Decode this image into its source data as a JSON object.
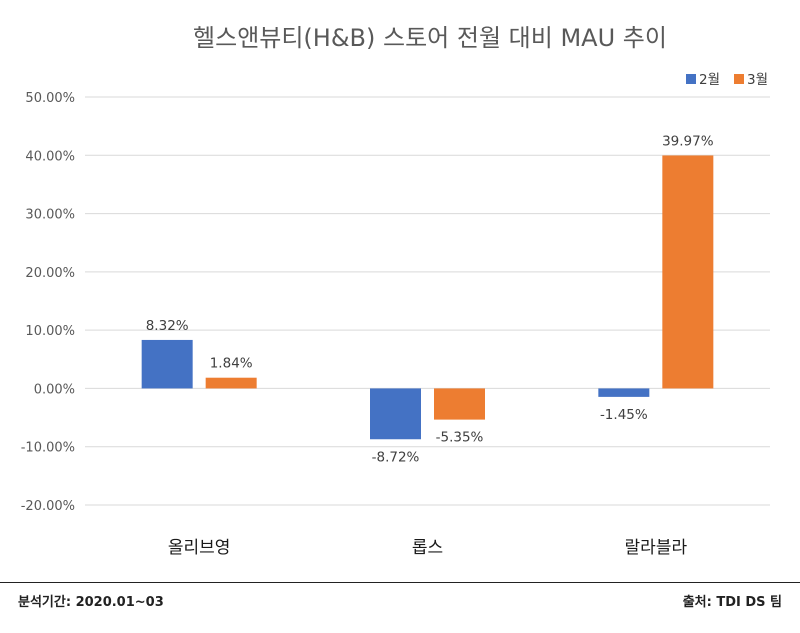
{
  "chart_data": {
    "type": "bar",
    "title": "헬스앤뷰티(H&B) 스토어 전월 대비 MAU 추이",
    "categories": [
      "올리브영",
      "롭스",
      "랄라블라"
    ],
    "series": [
      {
        "name": "2월",
        "color": "#4472C4",
        "values": [
          8.32,
          -8.72,
          -1.45
        ],
        "labels": [
          "8.32%",
          "-8.72%",
          "-1.45%"
        ]
      },
      {
        "name": "3월",
        "color": "#ED7D31",
        "values": [
          1.84,
          -5.35,
          39.97
        ],
        "labels": [
          "1.84%",
          "-5.35%",
          "39.97%"
        ]
      }
    ],
    "ylim": [
      -20,
      50
    ],
    "yticks": [
      50,
      40,
      30,
      20,
      10,
      0,
      -10,
      -20
    ],
    "ytick_labels": [
      "50.00%",
      "40.00%",
      "30.00%",
      "20.00%",
      "10.00%",
      "0.00%",
      "-10.00%",
      "-20.00%"
    ],
    "grid": true,
    "legend": "top-right",
    "xlabel": "",
    "ylabel": ""
  },
  "footer": {
    "period": "분석기간: 2020.01~03",
    "source": "출처: TDI DS 팀"
  }
}
